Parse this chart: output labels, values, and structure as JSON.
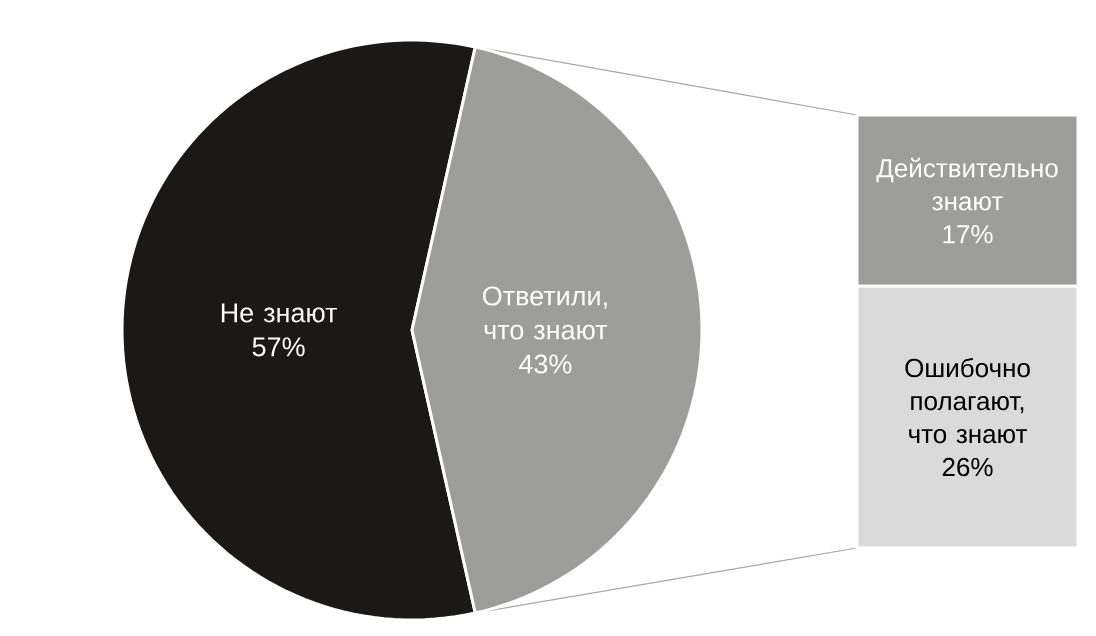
{
  "chart_data": [
    {
      "type": "pie",
      "categories": [
        "Не знают",
        "Ответили, что знают"
      ],
      "values": [
        57,
        43
      ],
      "colors": [
        "#1a1918",
        "#9d9d9c"
      ],
      "value_labels": [
        "57%",
        "43%"
      ]
    },
    {
      "type": "bar",
      "stacked": true,
      "categories": [
        null
      ],
      "series": [
        {
          "name": "Ошибочно полагают, что знают",
          "color": "#d9dad9",
          "values": [
            26
          ],
          "value_labels": [
            "26%"
          ]
        },
        {
          "name": "Действительно знают",
          "color": "#9d9d9c",
          "values": [
            17
          ],
          "value_labels": [
            "17%"
          ]
        }
      ]
    }
  ]
}
